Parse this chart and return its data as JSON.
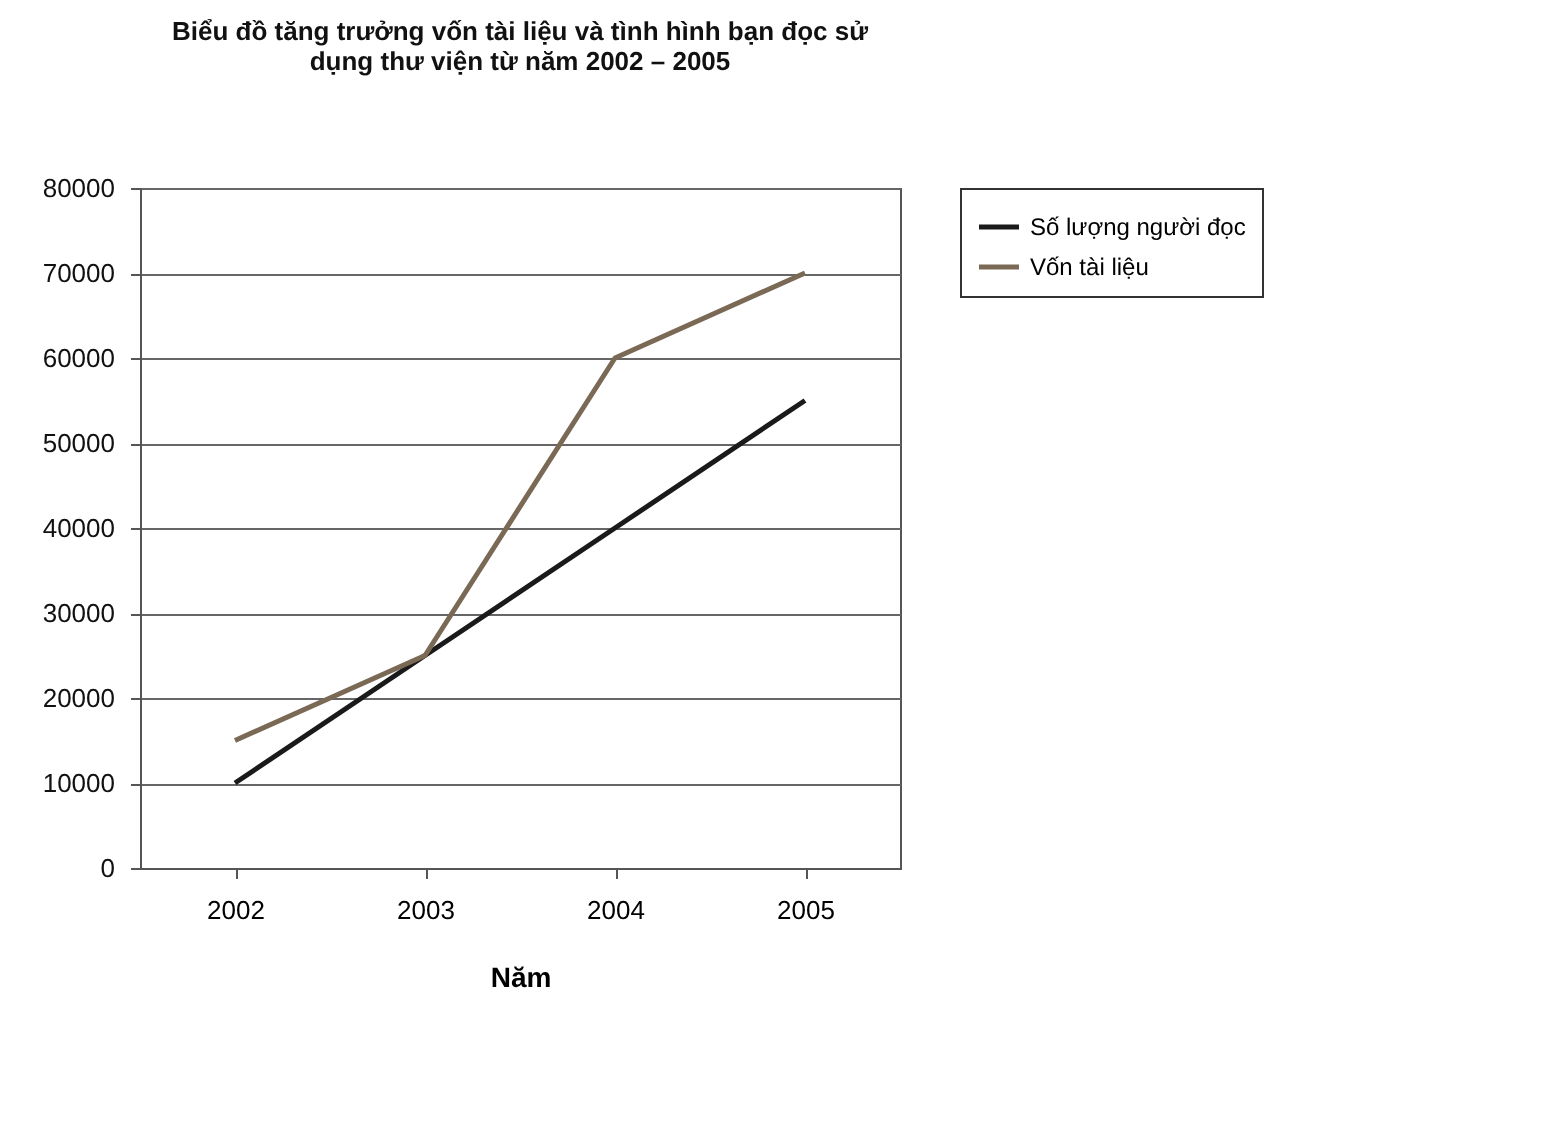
{
  "chart_data": {
    "type": "line",
    "title": "Biểu đồ tăng trưởng vốn tài liệu và tình hình bạn đọc sử\ndụng thư viện từ năm 2002 – 2005",
    "xlabel": "Năm",
    "categories": [
      "2002",
      "2003",
      "2004",
      "2005"
    ],
    "series": [
      {
        "name": "Số lượng người đọc",
        "color": "#1a1a1a",
        "values": [
          10000,
          25000,
          40000,
          55000
        ]
      },
      {
        "name": "Vốn tài liệu",
        "color": "#7a6a55",
        "values": [
          15000,
          25000,
          60000,
          70000
        ]
      }
    ],
    "ylim": [
      0,
      80000
    ],
    "yticks": [
      0,
      10000,
      20000,
      30000,
      40000,
      50000,
      60000,
      70000,
      80000
    ],
    "grid": "y",
    "legend": "right",
    "marker": "none",
    "line_style": "solid"
  }
}
